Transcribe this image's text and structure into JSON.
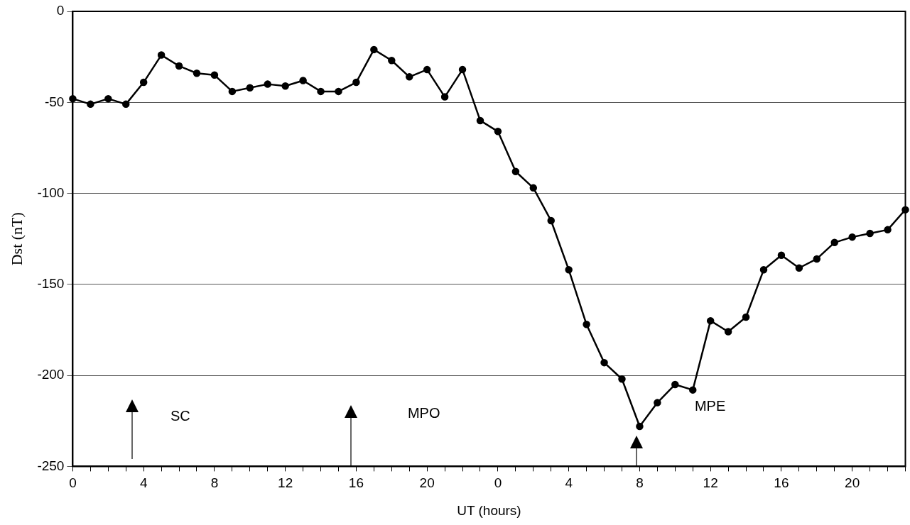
{
  "chart_data": {
    "type": "line",
    "xlabel": "UT (hours)",
    "ylabel": "Dst (nT)",
    "categories": [
      "0",
      null,
      null,
      null,
      "4",
      null,
      null,
      null,
      "8",
      null,
      null,
      null,
      "12",
      null,
      null,
      null,
      "16",
      null,
      null,
      null,
      "20",
      null,
      null,
      null,
      "0",
      null,
      null,
      null,
      "4",
      null,
      null,
      null,
      "8",
      null,
      null,
      null,
      "12",
      null,
      null,
      null,
      "16",
      null,
      null,
      null,
      "20",
      null,
      null,
      null
    ],
    "series": [
      {
        "color": "#000000",
        "values": [
          -48,
          -51,
          -48,
          -51,
          -39,
          -24,
          -30,
          -34,
          -35,
          -44,
          -42,
          -40,
          -41,
          -38,
          -44,
          -44,
          -39,
          -21,
          -27,
          -36,
          -32,
          -47,
          -32,
          -60,
          -66,
          -88,
          -97,
          -115,
          -142,
          -172,
          -193,
          -202,
          -228,
          -215,
          -205,
          -208,
          -170,
          -176,
          -168,
          -142,
          -134,
          -141,
          -136,
          -127,
          -124,
          -122,
          -120,
          -109
        ]
      }
    ],
    "ylim": [
      -250,
      0
    ],
    "yticks": [
      -250,
      -200,
      -150,
      -100,
      -50,
      0
    ],
    "grid": "y",
    "marker": "circle",
    "line_style": "solid",
    "legend": false,
    "annotations": [
      "SC",
      "MPO",
      "MPE"
    ]
  }
}
